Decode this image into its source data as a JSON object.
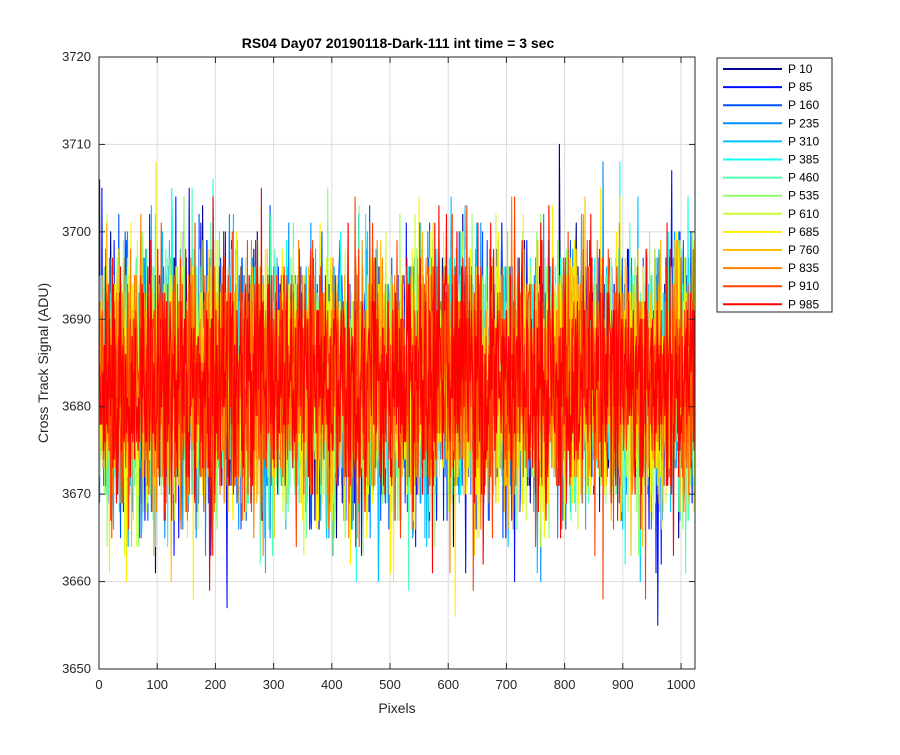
{
  "chart_data": {
    "type": "line",
    "title": "RS04 Day07 20190118-Dark-111 int time = 3 sec",
    "xlabel": "Pixels",
    "ylabel": "Cross Track Signal (ADU)",
    "xlim": [
      0,
      1024
    ],
    "ylim": [
      3650,
      3720
    ],
    "xticks": [
      0,
      100,
      200,
      300,
      400,
      500,
      600,
      700,
      800,
      900,
      1000
    ],
    "yticks": [
      3650,
      3660,
      3670,
      3680,
      3690,
      3700,
      3710,
      3720
    ],
    "grid": true,
    "legend_position": "outside-top-right",
    "series_stats": {
      "mean": 3683,
      "stddev": 7,
      "min_observed": 3652,
      "max_observed": 3711,
      "points_per_series": 1024
    },
    "series": [
      {
        "name": "P 10",
        "color": "#00008f",
        "seed": 11
      },
      {
        "name": "P 85",
        "color": "#0010ff",
        "seed": 23
      },
      {
        "name": "P 160",
        "color": "#0050ff",
        "seed": 37
      },
      {
        "name": "P 235",
        "color": "#0090ff",
        "seed": 41
      },
      {
        "name": "P 310",
        "color": "#00c0ff",
        "seed": 53
      },
      {
        "name": "P 385",
        "color": "#10ffef",
        "seed": 67
      },
      {
        "name": "P 460",
        "color": "#50ffaf",
        "seed": 71
      },
      {
        "name": "P 535",
        "color": "#90ff6f",
        "seed": 83
      },
      {
        "name": "P 610",
        "color": "#cfff30",
        "seed": 97
      },
      {
        "name": "P 685",
        "color": "#ffef00",
        "seed": 101
      },
      {
        "name": "P 760",
        "color": "#ffbf00",
        "seed": 113
      },
      {
        "name": "P 835",
        "color": "#ff8000",
        "seed": 127
      },
      {
        "name": "P 910",
        "color": "#ff4000",
        "seed": 131
      },
      {
        "name": "P 985",
        "color": "#ff0000",
        "seed": 139
      }
    ]
  }
}
